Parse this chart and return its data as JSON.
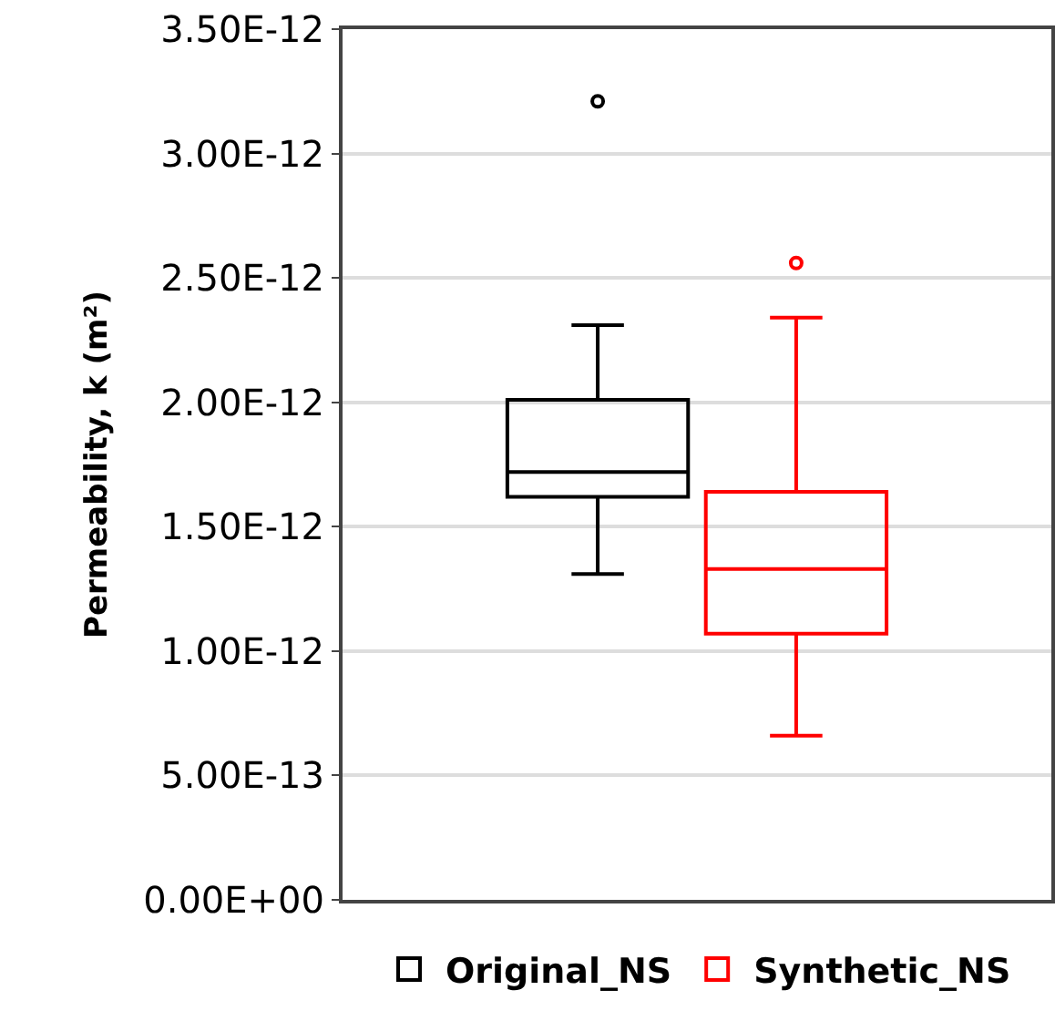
{
  "chart_data": {
    "type": "box",
    "ylabel": "Permeability, k (m²)",
    "categories": [
      null
    ],
    "series": [
      {
        "name": "Original_NS",
        "color": "#000000",
        "boxes": [
          {
            "low": 1.31e-12,
            "q1": 1.62e-12,
            "median": 1.72e-12,
            "q3": 2.01e-12,
            "high": 2.31e-12,
            "outliers": [
              3.21e-12
            ]
          }
        ]
      },
      {
        "name": "Synthetic_NS",
        "color": "#ff0000",
        "boxes": [
          {
            "low": 6.6e-13,
            "q1": 1.07e-12,
            "median": 1.33e-12,
            "q3": 1.64e-12,
            "high": 2.34e-12,
            "outliers": [
              2.56e-12
            ]
          }
        ]
      }
    ],
    "ylim": [
      0,
      3.5e-12
    ],
    "yticks": [
      {
        "value": 0,
        "label": "0.00E+00"
      },
      {
        "value": 5e-13,
        "label": "5.00E-13"
      },
      {
        "value": 1e-12,
        "label": "1.00E-12"
      },
      {
        "value": 1.5e-12,
        "label": "1.50E-12"
      },
      {
        "value": 2e-12,
        "label": "2.00E-12"
      },
      {
        "value": 2.5e-12,
        "label": "2.50E-12"
      },
      {
        "value": 3e-12,
        "label": "3.00E-12"
      },
      {
        "value": 3.5e-12,
        "label": "3.50E-12"
      }
    ],
    "grid": "y",
    "legend": "bottom",
    "tick_labels": "y"
  }
}
